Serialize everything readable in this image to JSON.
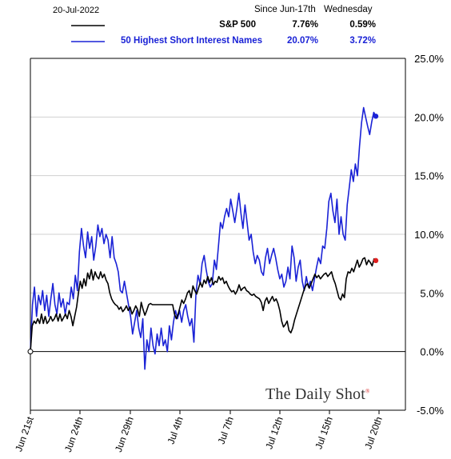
{
  "header": {
    "date": "20-Jul-2022",
    "col1": "Since Jun-17th",
    "col2": "Wednesday"
  },
  "legend": [
    {
      "name": "S&P 500",
      "since": "7.76%",
      "wednesday": "0.59%",
      "color": "#000000"
    },
    {
      "name": "50 Highest Short Interest Names",
      "since": "20.07%",
      "wednesday": "3.72%",
      "color": "#1a22d6"
    }
  ],
  "branding": {
    "text": "The Daily Shot",
    "mark": "®"
  },
  "chart_data": {
    "type": "line",
    "title": "",
    "xlabel": "",
    "ylabel": "",
    "ylim": [
      -5,
      25
    ],
    "yticks": [
      25,
      20,
      15,
      10,
      5,
      0,
      -5
    ],
    "ytick_labels": [
      "25.0%",
      "20.0%",
      "15.0%",
      "10.0%",
      "5.0%",
      "0.0%",
      "-5.0%"
    ],
    "xtick_labels": [
      "Jun 21st",
      "Jun 24th",
      "Jun 29th",
      "Jul 4th",
      "Jul 7th",
      "Jul 12th",
      "Jul 15th",
      "Jul 20th"
    ],
    "grid": "horizontal",
    "series": [
      {
        "name": "50 Highest Short Interest Names",
        "color": "#1a22d6",
        "values": [
          0,
          4,
          5.5,
          3,
          4.8,
          4,
          5.2,
          3.5,
          4.8,
          3,
          4.5,
          5.8,
          4,
          3.2,
          5,
          3.8,
          4.5,
          3.2,
          4.2,
          4,
          5.5,
          4.5,
          6.5,
          5.2,
          8.5,
          10.5,
          9,
          8,
          10.2,
          8.8,
          9.8,
          7.8,
          9,
          10.8,
          9.8,
          10.5,
          9.2,
          10,
          9.5,
          8,
          9.8,
          8,
          7.5,
          6.8,
          5.2,
          5,
          6,
          5,
          4,
          3,
          1.5,
          2.5,
          3.5,
          2,
          1.2,
          2.8,
          -1.5,
          1,
          0,
          2,
          0.5,
          -0.2,
          1.5,
          0.5,
          2,
          0.5,
          1,
          0,
          2.2,
          1,
          2.5,
          3.5,
          2.8,
          3.5,
          2.5,
          3.5,
          4,
          3,
          2.2,
          2.8,
          0.8,
          5,
          6.5,
          5.8,
          7.5,
          8.2,
          7,
          6,
          5.5,
          5.8,
          7.8,
          7,
          9,
          11,
          10.5,
          11.5,
          12.2,
          11.5,
          13,
          12,
          11,
          12.2,
          13.5,
          11.8,
          10.5,
          12.5,
          11,
          9.5,
          10,
          8.5,
          7.5,
          8.2,
          7.8,
          6.8,
          6.5,
          8,
          8.8,
          7.5,
          8.2,
          8.8,
          8,
          7,
          6.2,
          6.6,
          5.5,
          6,
          7.2,
          6.2,
          9,
          8,
          6,
          7.2,
          7.8,
          6,
          5.2,
          6.4,
          5.5,
          6,
          5.2,
          6.2,
          7.2,
          8,
          7.5,
          9,
          8.8,
          10.5,
          12.8,
          13.5,
          12,
          11,
          13,
          10,
          11.5,
          10,
          9.5,
          12.5,
          14,
          15.5,
          14.5,
          16,
          15,
          17.5,
          19.5,
          20.8,
          20,
          19.2,
          18.5,
          19.6,
          20.4,
          20.07
        ]
      },
      {
        "name": "S&P 500",
        "color": "#000000",
        "values": [
          0,
          2.2,
          2.6,
          2.4,
          2.8,
          2.4,
          3.2,
          2.4,
          3,
          2.4,
          2.6,
          3,
          2.6,
          2.8,
          3.2,
          2.6,
          3.2,
          2.6,
          2.9,
          3.2,
          2.8,
          3.5,
          3,
          2.2,
          3,
          3.8,
          5,
          6,
          5.4,
          6.2,
          5.6,
          6.7,
          6.2,
          7,
          6.1,
          6.8,
          6.4,
          6.2,
          6.8,
          6.3,
          6.6,
          6.1,
          5.8,
          5,
          4.5,
          4.2,
          4,
          3.9,
          3.6,
          3.8,
          3.4,
          3.6,
          3.9,
          3.5,
          3.8,
          3.2,
          3.5,
          3.9,
          3.6,
          3,
          4.2,
          3.6,
          3.1,
          3.5,
          4,
          4.1,
          4,
          4,
          4,
          4,
          4,
          4,
          4,
          4,
          4,
          4,
          4,
          4,
          3.2,
          2.8,
          3.2,
          3.8,
          4.4,
          4.1,
          4.5,
          5,
          5.2,
          4.6,
          5.6,
          5.2,
          4.9,
          5.4,
          5.9,
          5.5,
          6.1,
          5.8,
          6.4,
          5.9,
          6.3,
          5.7,
          6,
          5.9,
          6.4,
          6.1,
          6.3,
          5.8,
          6,
          5.6,
          5.3,
          5.1,
          5.2,
          4.9,
          5.2,
          5.7,
          5.2,
          5.4,
          5.5,
          5.2,
          5.1,
          4.9,
          4.8,
          4.9,
          4.7,
          4.6,
          4.5,
          4.2,
          3.5,
          4.3,
          4.6,
          4.1,
          4.4,
          4.7,
          4.3,
          4.5,
          4.1,
          3.5,
          2.6,
          2.1,
          2.3,
          2.6,
          1.8,
          1.6,
          2,
          2.7,
          3.2,
          3.7,
          4.2,
          4.7,
          5.2,
          5.6,
          5.8,
          5.4,
          5.8,
          6.2,
          6.6,
          6.3,
          6.5,
          6.2,
          6.4,
          6.6,
          6.7,
          6.4,
          6.6,
          6.8,
          6.2,
          5.8,
          5.2,
          4.6,
          4.4,
          4.9,
          4.6,
          6.2,
          6.8,
          6.7,
          7.1,
          6.8,
          7.3,
          7.8,
          7.2,
          7.5,
          7.9,
          8,
          7.4,
          7.8,
          7.6,
          7.3,
          7.9,
          7.76
        ]
      }
    ]
  }
}
